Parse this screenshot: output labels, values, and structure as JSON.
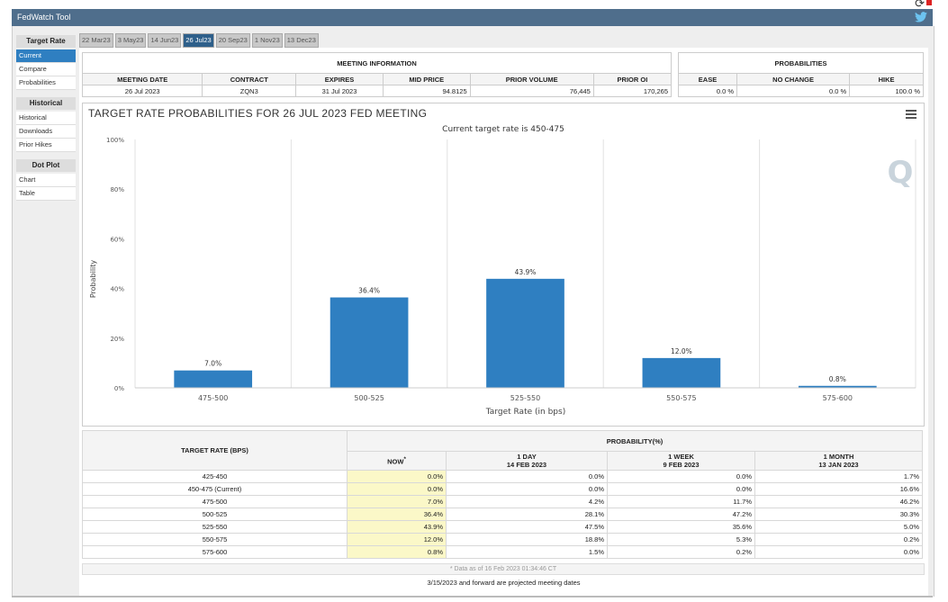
{
  "window": {
    "title": "FedWatch Tool"
  },
  "sidebar": {
    "sections": [
      {
        "title": "Target Rate",
        "items": [
          "Current",
          "Compare",
          "Probabilities"
        ]
      },
      {
        "title": "Historical",
        "items": [
          "Historical",
          "Downloads",
          "Prior Hikes"
        ]
      },
      {
        "title": "Dot Plot",
        "items": [
          "Chart",
          "Table"
        ]
      }
    ],
    "active_item": "Current"
  },
  "tabs": [
    {
      "label": "22 Mar23"
    },
    {
      "label": "3 May23"
    },
    {
      "label": "14 Jun23"
    },
    {
      "label": "26 Jul23",
      "active": true
    },
    {
      "label": "20 Sep23"
    },
    {
      "label": "1 Nov23"
    },
    {
      "label": "13 Dec23"
    }
  ],
  "meeting_info": {
    "header": "MEETING INFORMATION",
    "columns": [
      "MEETING DATE",
      "CONTRACT",
      "EXPIRES",
      "MID PRICE",
      "PRIOR VOLUME",
      "PRIOR OI"
    ],
    "row": [
      "26 Jul 2023",
      "ZQN3",
      "31 Jul 2023",
      "94.8125",
      "76,445",
      "170,265"
    ]
  },
  "probabilities": {
    "header": "PROBABILITIES",
    "columns": [
      "EASE",
      "NO CHANGE",
      "HIKE"
    ],
    "row": [
      "0.0 %",
      "0.0 %",
      "100.0 %"
    ]
  },
  "chart": {
    "title": "TARGET RATE PROBABILITIES FOR 26 JUL 2023 FED MEETING",
    "subtitle": "Current target rate is 450-475",
    "watermark": "Q",
    "menu_icon": "hamburger-icon"
  },
  "chart_data": {
    "type": "bar",
    "title": "TARGET RATE PROBABILITIES FOR 26 JUL 2023 FED MEETING",
    "subtitle": "Current target rate is 450-475",
    "categories": [
      "475-500",
      "500-525",
      "525-550",
      "550-575",
      "575-600"
    ],
    "values": [
      7.0,
      36.4,
      43.9,
      12.0,
      0.8
    ],
    "data_labels": [
      "7.0%",
      "36.4%",
      "43.9%",
      "12.0%",
      "0.8%"
    ],
    "xlabel": "Target Rate (in bps)",
    "ylabel": "Probability",
    "ylim": [
      0,
      100
    ],
    "yticks": [
      "0%",
      "20%",
      "40%",
      "60%",
      "80%",
      "100%"
    ],
    "color": "#2f7fc1",
    "grid": "vertical"
  },
  "prob_table": {
    "col_target": "TARGET RATE (BPS)",
    "group_header": "PROBABILITY(%)",
    "cols": [
      {
        "l1": "NOW",
        "l2": ""
      },
      {
        "l1": "1 DAY",
        "l2": "14 FEB 2023"
      },
      {
        "l1": "1 WEEK",
        "l2": "9 FEB 2023"
      },
      {
        "l1": "1 MONTH",
        "l2": "13 JAN 2023"
      }
    ],
    "now_marker": "*",
    "rows": [
      [
        "425-450",
        "0.0%",
        "0.0%",
        "0.0%",
        "1.7%"
      ],
      [
        "450-475 (Current)",
        "0.0%",
        "0.0%",
        "0.0%",
        "16.6%"
      ],
      [
        "475-500",
        "7.0%",
        "4.2%",
        "11.7%",
        "46.2%"
      ],
      [
        "500-525",
        "36.4%",
        "28.1%",
        "47.2%",
        "30.3%"
      ],
      [
        "525-550",
        "43.9%",
        "47.5%",
        "35.6%",
        "5.0%"
      ],
      [
        "550-575",
        "12.0%",
        "18.8%",
        "5.3%",
        "0.2%"
      ],
      [
        "575-600",
        "0.8%",
        "1.5%",
        "0.2%",
        "0.0%"
      ]
    ]
  },
  "footnote": "* Data as of 16 Feb 2023 01:34:46 CT",
  "footer": "3/15/2023 and forward are projected meeting dates"
}
